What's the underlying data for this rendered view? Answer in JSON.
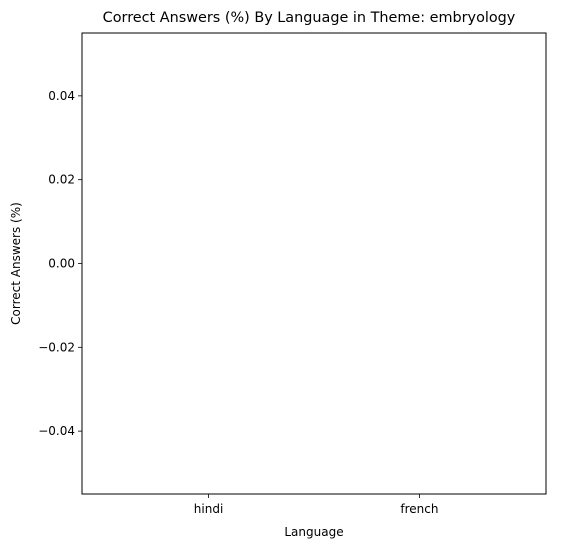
{
  "chart_data": {
    "type": "bar",
    "title": "Correct Answers (%) By Language in Theme: embryology",
    "xlabel": "Language",
    "ylabel": "Correct Answers (%)",
    "categories": [
      "hindi",
      "french"
    ],
    "values": [
      0,
      0
    ],
    "ylim": [
      -0.055,
      0.055
    ],
    "yticks": [
      0.04,
      0.02,
      0.0,
      -0.02,
      -0.04
    ],
    "ytick_labels": [
      "0.04",
      "0.02",
      "0.00",
      "−0.02",
      "−0.04"
    ],
    "grid": false,
    "legend": "none"
  }
}
